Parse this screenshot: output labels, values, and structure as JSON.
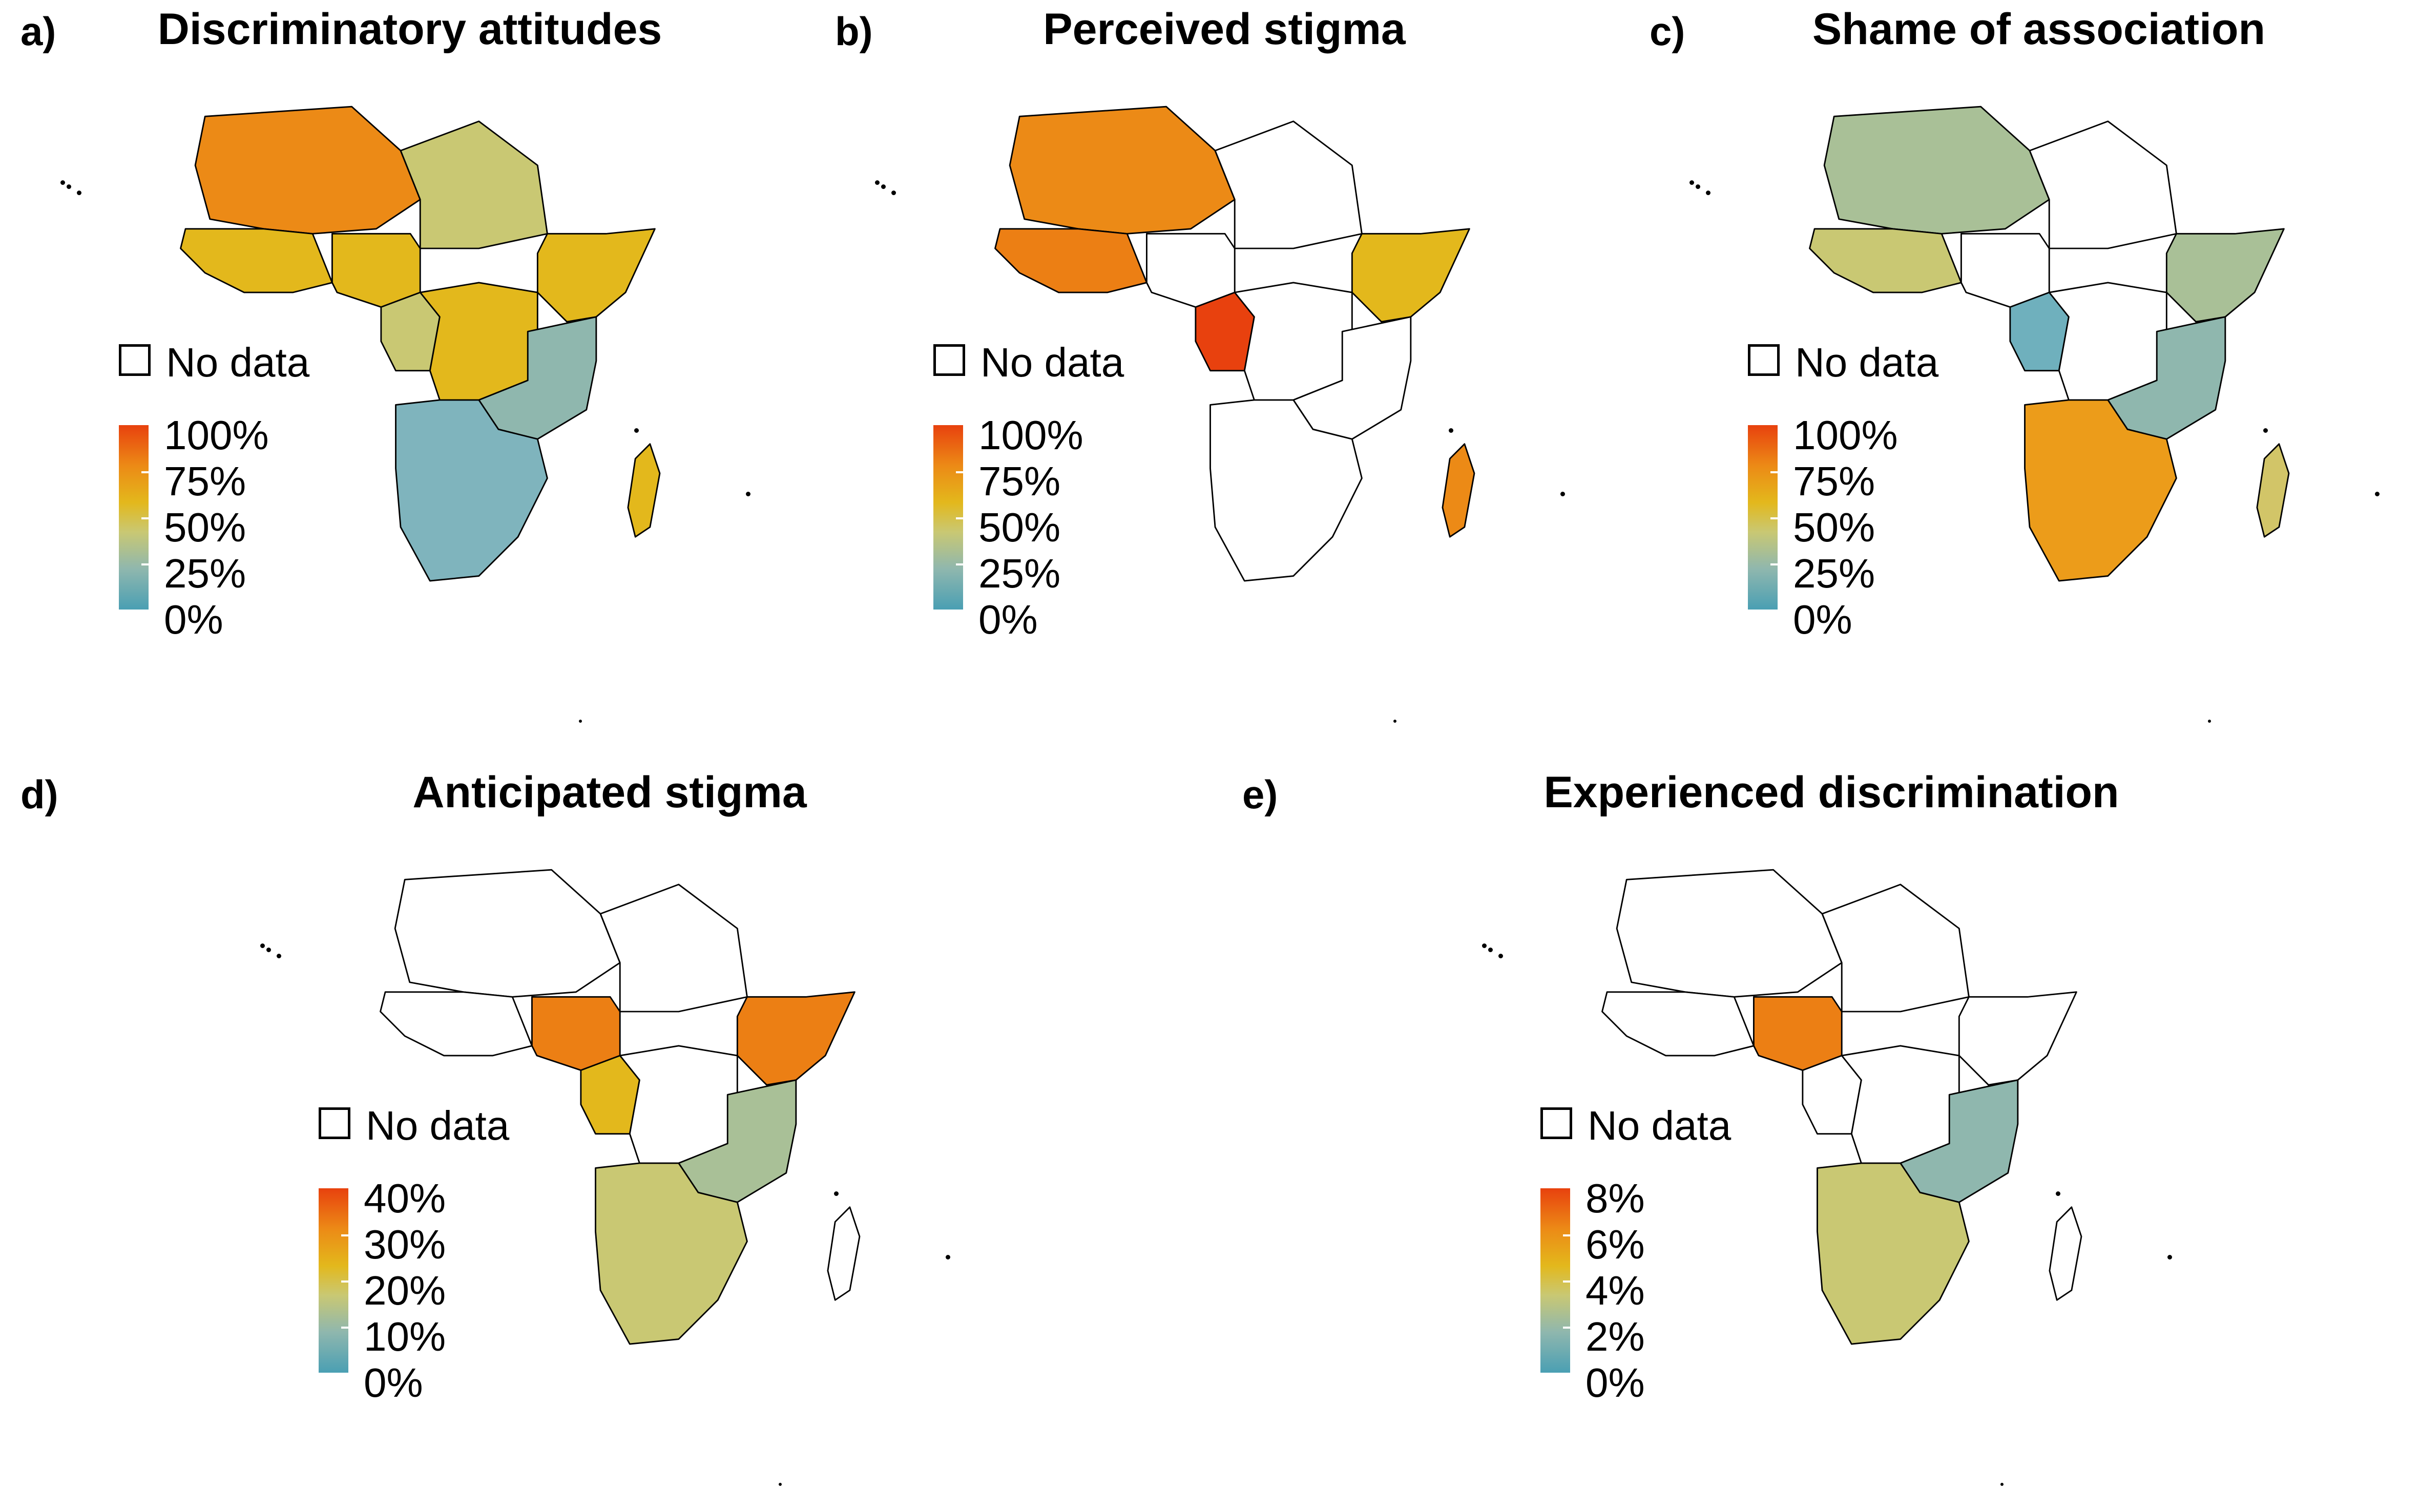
{
  "colors": {
    "no_data": "#ffffff",
    "scale_0": "#4a9fb3",
    "scale_25": "#8fb7ae",
    "scale_50": "#e3b81c",
    "scale_75": "#ec8a16",
    "scale_100": "#e8410e",
    "border": "#000000"
  },
  "legend": {
    "no_data_label": "No data"
  },
  "panels": [
    {
      "letter": "a)",
      "title": "Discriminatory attitudes",
      "ticks": [
        "100%",
        "75%",
        "50%",
        "25%",
        "0%"
      ],
      "regions": {
        "west": "#e3b81c",
        "sahel_w": "#ec8a16",
        "sahel_e": "#c9c873",
        "horn": "#e3b81c",
        "central": "#e3b81c",
        "east": "#8fb7ae",
        "southern": "#7fb4bd",
        "madagascar": "#e3b81c",
        "nigeria": "#e3b81c",
        "gulf": "#c9c873"
      }
    },
    {
      "letter": "b)",
      "title": "Perceived stigma",
      "ticks": [
        "100%",
        "75%",
        "50%",
        "25%",
        "0%"
      ],
      "regions": {
        "west": "#ec7f14",
        "sahel_w": "#ec8a16",
        "sahel_e": "#ffffff",
        "horn": "#e3b81c",
        "central": "#ffffff",
        "east": "#ffffff",
        "southern": "#ffffff",
        "madagascar": "#ec8a16",
        "nigeria": "#ffffff",
        "gulf": "#e8410e"
      }
    },
    {
      "letter": "c)",
      "title": "Shame of association",
      "ticks": [
        "100%",
        "75%",
        "50%",
        "25%",
        "0%"
      ],
      "regions": {
        "west": "#c9c873",
        "sahel_w": "#a9c097",
        "sahel_e": "#ffffff",
        "horn": "#a9c097",
        "central": "#ffffff",
        "east": "#8fb7ae",
        "southern": "#ec9c1a",
        "madagascar": "#d2c568",
        "nigeria": "#ffffff",
        "gulf": "#6fb0bd"
      }
    },
    {
      "letter": "d)",
      "title": "Anticipated stigma",
      "ticks": [
        "40%",
        "30%",
        "20%",
        "10%",
        "0%"
      ],
      "regions": {
        "west": "#ffffff",
        "sahel_w": "#ffffff",
        "sahel_e": "#ffffff",
        "horn": "#ec7f14",
        "central": "#ffffff",
        "east": "#a9c097",
        "southern": "#c9c873",
        "madagascar": "#ffffff",
        "nigeria": "#ec7f14",
        "gulf": "#e3b81c"
      }
    },
    {
      "letter": "e)",
      "title": "Experienced discrimination",
      "ticks": [
        "8%",
        "6%",
        "4%",
        "2%",
        "0%"
      ],
      "regions": {
        "west": "#ffffff",
        "sahel_w": "#ffffff",
        "sahel_e": "#ffffff",
        "horn": "#ffffff",
        "central": "#ffffff",
        "east": "#8fb7ae",
        "southern": "#c9c873",
        "madagascar": "#ffffff",
        "nigeria": "#ec7f14",
        "gulf": "#ffffff"
      }
    }
  ]
}
